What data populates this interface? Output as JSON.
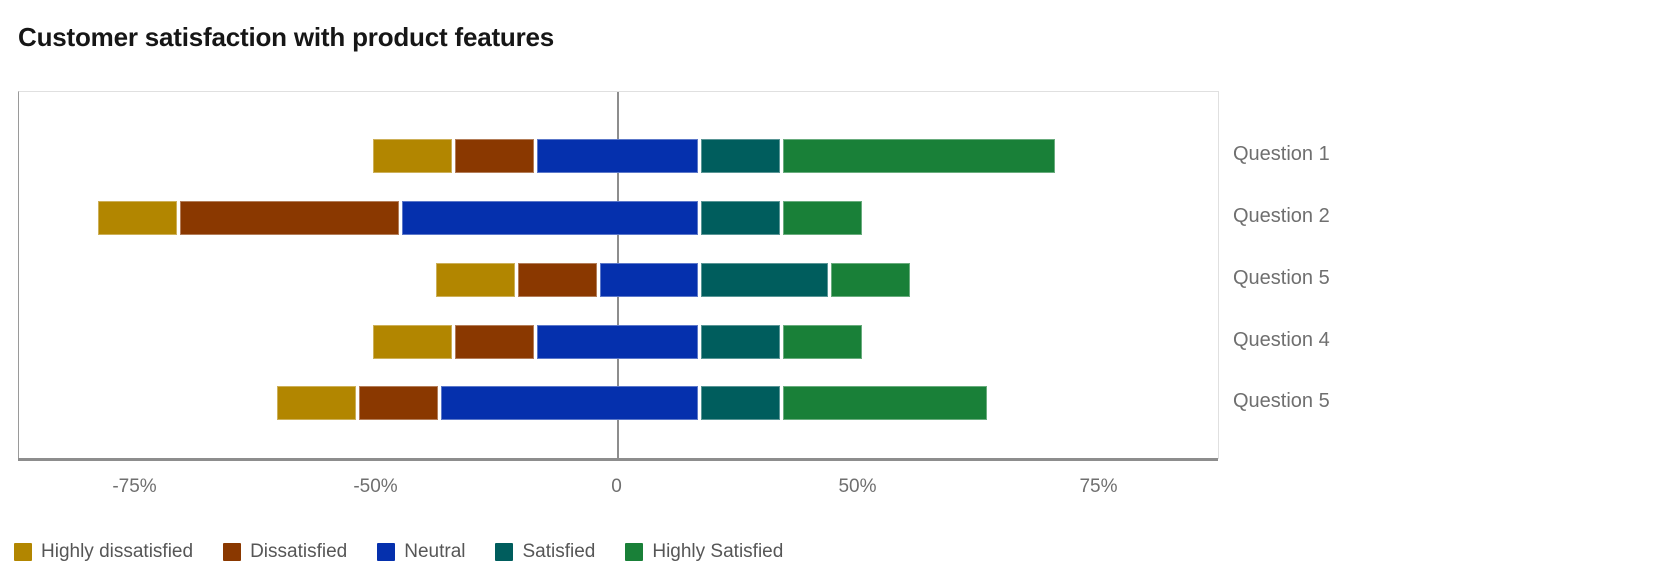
{
  "title": "Customer satisfaction with product features",
  "chart_data": {
    "type": "bar",
    "variant": "diverging-stacked-horizontal-likert",
    "unit": "percent",
    "title": "Customer satisfaction with product features",
    "categories": [
      "Question 1",
      "Question 2",
      "Question 5",
      "Question 4",
      "Question 5"
    ],
    "series": [
      {
        "name": "Highly dissatisfied",
        "color": "#b28600",
        "values": [
          17,
          17,
          17,
          17,
          17
        ]
      },
      {
        "name": "Dissatisfied",
        "color": "#8a3800",
        "values": [
          17,
          46,
          17,
          17,
          17
        ]
      },
      {
        "name": "Neutral",
        "color": "#0530ad",
        "values": [
          34,
          62,
          21,
          34,
          54
        ]
      },
      {
        "name": "Satisfied",
        "color": "#005d5d",
        "values": [
          17,
          17,
          27,
          17,
          17
        ]
      },
      {
        "name": "Highly Satisfied",
        "color": "#198038",
        "values": [
          57,
          17,
          17,
          17,
          43
        ]
      }
    ],
    "neutral_negative_portion": [
      17,
      45,
      4,
      17,
      37
    ],
    "x_axis": {
      "tick_labels": [
        "-75%",
        "-50%",
        "0",
        "50%",
        "75%"
      ],
      "baseline_color": "#8d8d8d"
    },
    "grid": false,
    "legend_position": "bottom-left",
    "text_colors": {
      "title": "#161616",
      "axis_ticks": "#6f6f6f",
      "category_labels": "#6f6f6f",
      "legend": "#565656"
    }
  }
}
